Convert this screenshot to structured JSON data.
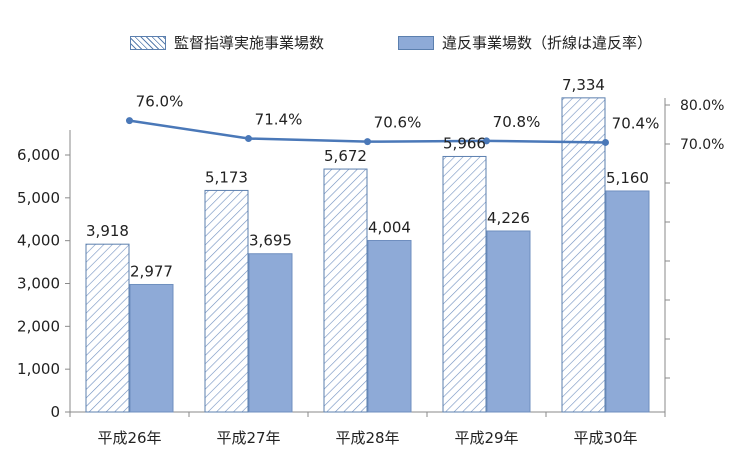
{
  "chart_data": {
    "type": "bar",
    "title": "",
    "categories": [
      "平成26年",
      "平成27年",
      "平成28年",
      "平成29年",
      "平成30年"
    ],
    "series": [
      {
        "name": "監督指導実施事業場数",
        "values": [
          3918,
          5173,
          5672,
          5966,
          7334
        ],
        "labels": [
          "3,918",
          "5,173",
          "5,672",
          "5,966",
          "7,334"
        ],
        "fill": "hatched",
        "color": "#5b7fae"
      },
      {
        "name": "違反事業場数（折線は違反率）",
        "values": [
          2977,
          3695,
          4004,
          4226,
          5160
        ],
        "labels": [
          "2,977",
          "3,695",
          "4,004",
          "4,226",
          "5,160"
        ],
        "fill": "solid",
        "color": "#8eaad7"
      }
    ],
    "line_series": {
      "name": "違反率",
      "values": [
        76.0,
        71.4,
        70.6,
        70.8,
        70.4
      ],
      "labels": [
        "76.0%",
        "71.4%",
        "70.6%",
        "70.8%",
        "70.4%"
      ],
      "color": "#4a78b8",
      "axis": "right"
    },
    "y_left": {
      "min": 0,
      "max": 6000,
      "ticks": [
        0,
        1000,
        2000,
        3000,
        4000,
        5000,
        6000
      ],
      "tick_labels": [
        "0",
        "1,000",
        "2,000",
        "3,000",
        "4,000",
        "5,000",
        "6,000"
      ]
    },
    "y_right": {
      "ticks": [
        70.0,
        80.0
      ],
      "tick_labels": [
        "70.0%",
        "80.0%"
      ]
    },
    "grid": false,
    "legend_position": "top"
  }
}
